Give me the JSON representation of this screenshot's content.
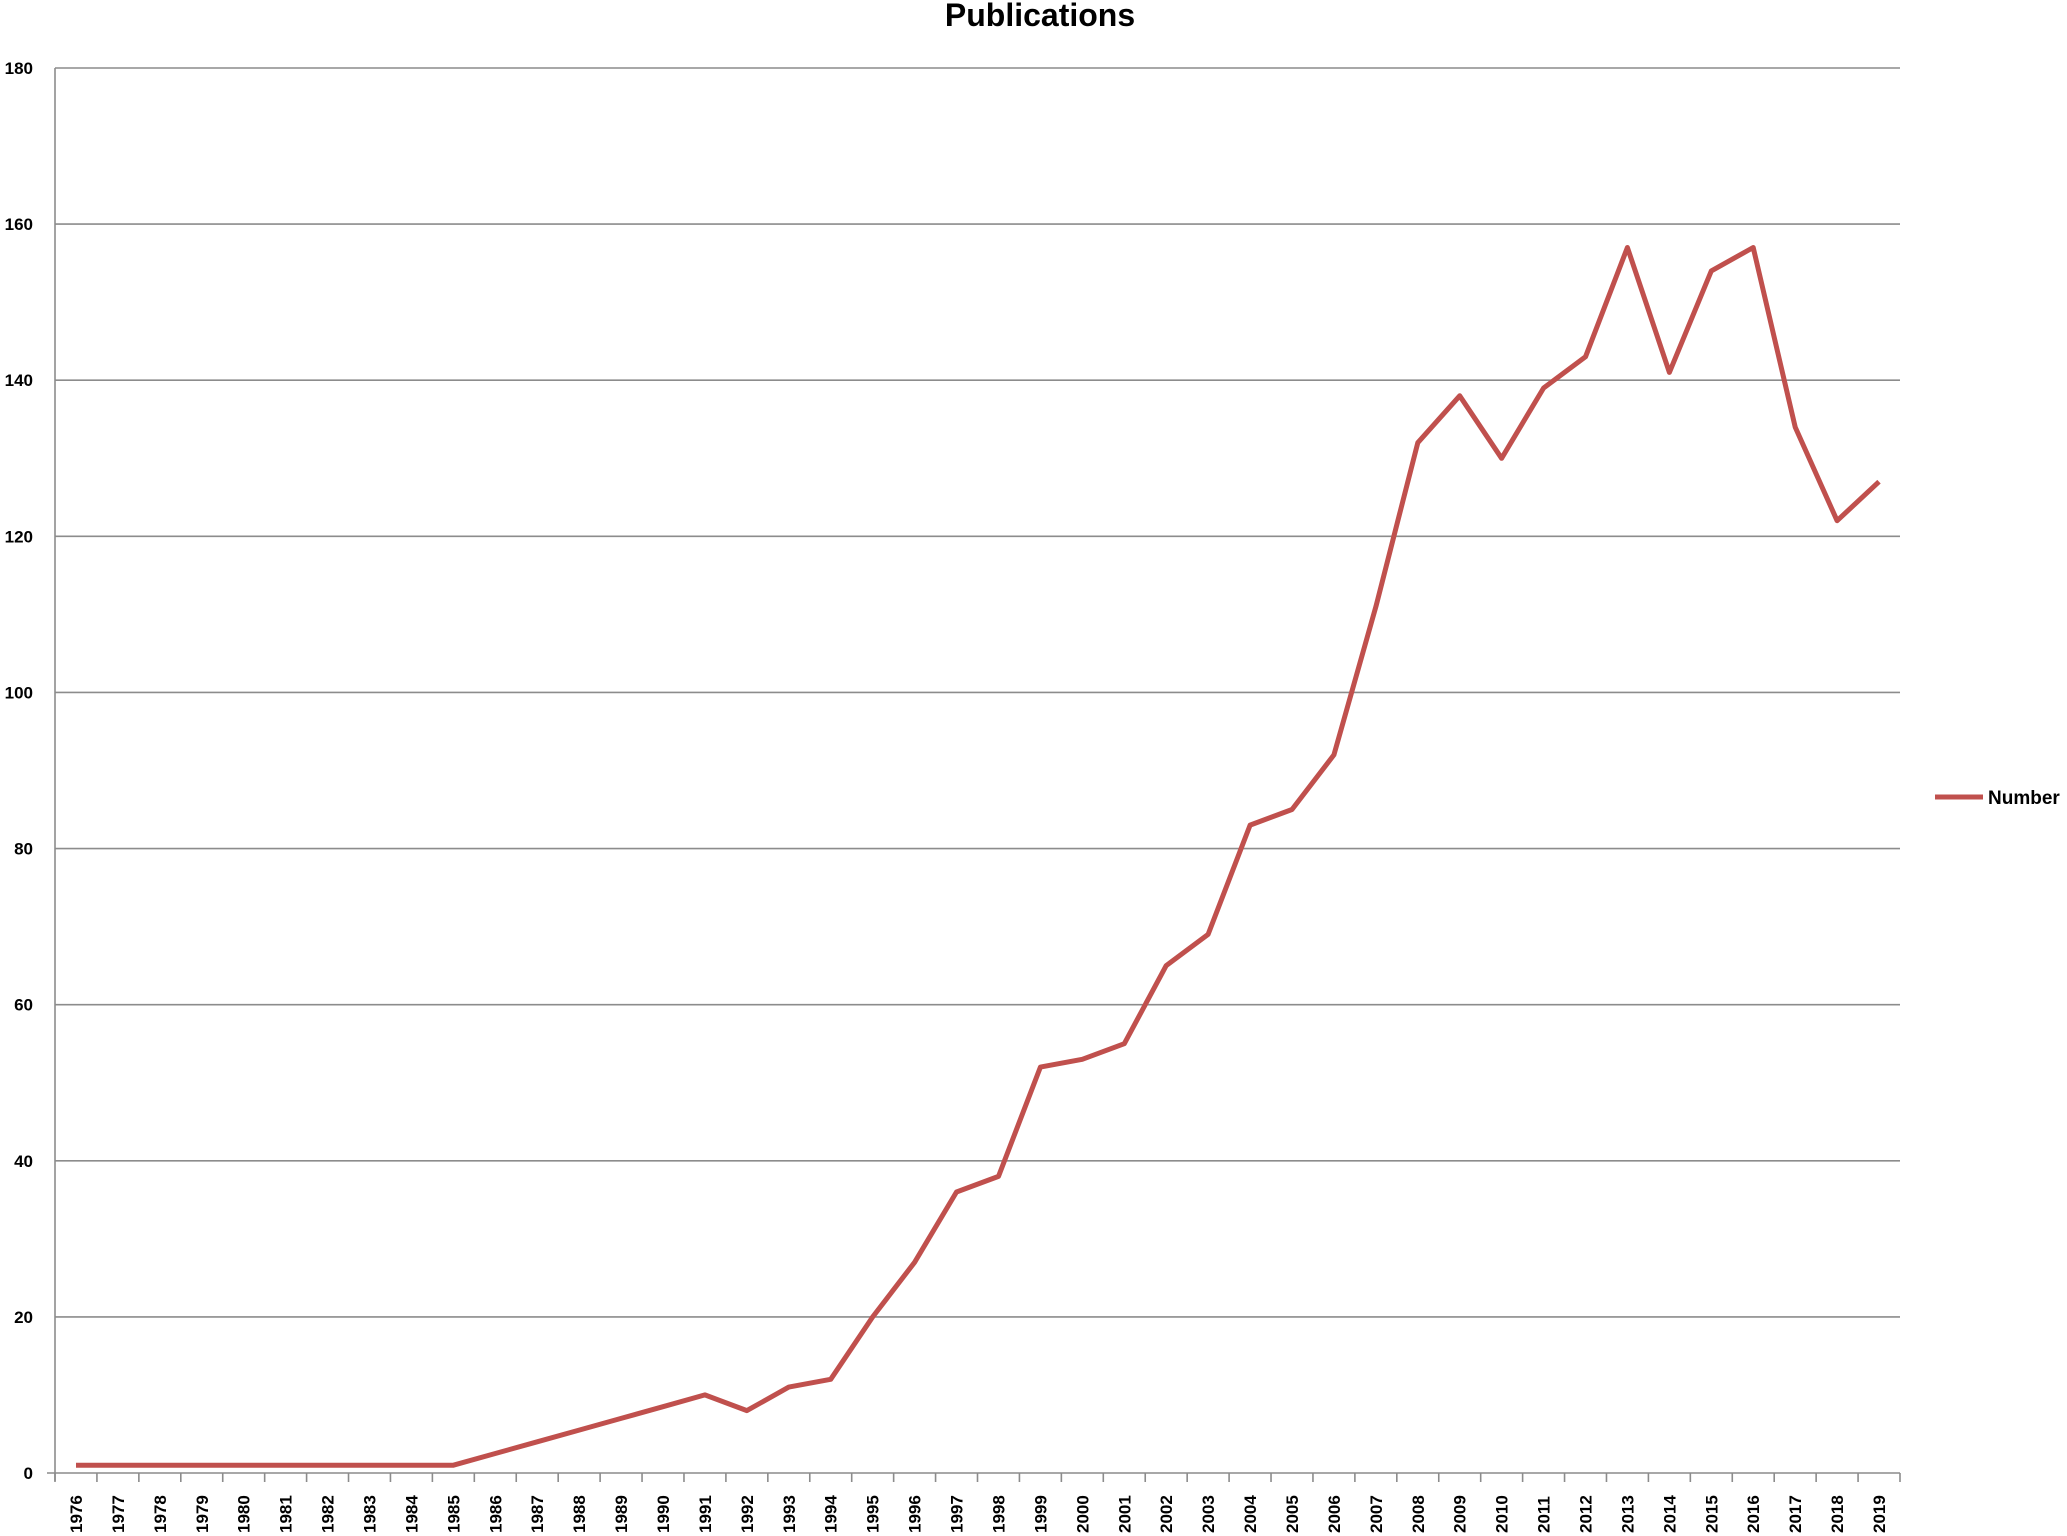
{
  "chart_data": {
    "type": "line",
    "title": "Publications",
    "xlabel": "",
    "ylabel": "",
    "ylim": [
      0,
      180
    ],
    "yticks": [
      "0",
      "20",
      "40",
      "60",
      "80",
      "100",
      "120",
      "140",
      "160",
      "180"
    ],
    "grid": true,
    "legend_position": "right",
    "categories": [
      "1976",
      "1977",
      "1978",
      "1979",
      "1980",
      "1981",
      "1982",
      "1983",
      "1984",
      "1985",
      "1986",
      "1987",
      "1988",
      "1989",
      "1990",
      "1991",
      "1992",
      "1993",
      "1994",
      "1995",
      "1996",
      "1997",
      "1998",
      "1999",
      "2000",
      "2001",
      "2002",
      "2003",
      "2004",
      "2005",
      "2006",
      "2007",
      "2008",
      "2009",
      "2010",
      "2011",
      "2012",
      "2013",
      "2014",
      "2015",
      "2016",
      "2017",
      "2018",
      "2019"
    ],
    "series": [
      {
        "name": "Number",
        "color": "#c0504d",
        "values": [
          1,
          1,
          1,
          1,
          1,
          1,
          1,
          1,
          1,
          1,
          2.5,
          4,
          5.5,
          7,
          8.5,
          10,
          8,
          11,
          12,
          20,
          27,
          36,
          38,
          52,
          53,
          55,
          65,
          69,
          83,
          85,
          92,
          111,
          132,
          138,
          130,
          139,
          143,
          157,
          141,
          154,
          157,
          134,
          122,
          127
        ]
      }
    ]
  }
}
